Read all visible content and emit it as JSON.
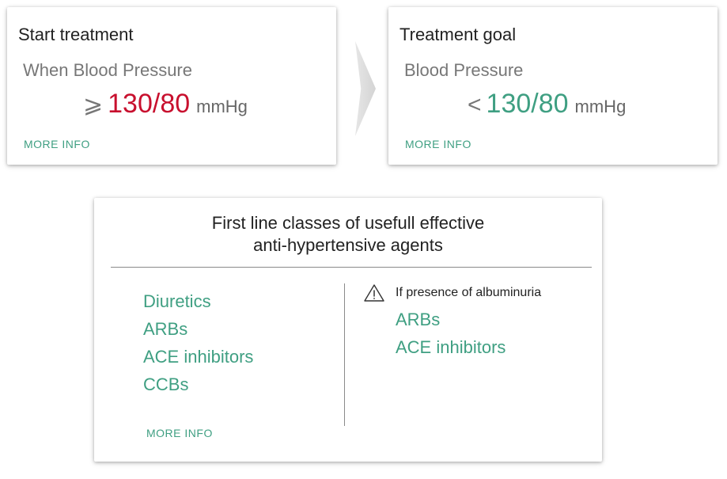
{
  "start_card": {
    "title": "Start treatment",
    "subtitle": "When Blood Pressure",
    "symbol": "⩾",
    "value": "130/80",
    "unit": "mmHg",
    "more_info": "MORE INFO"
  },
  "goal_card": {
    "title": "Treatment goal",
    "subtitle": "Blood Pressure",
    "symbol": "<",
    "value": "130/80",
    "unit": "mmHg",
    "more_info": "MORE INFO"
  },
  "classes_card": {
    "title_line1": "First line classes of usefull effective",
    "title_line2": "anti-hypertensive agents",
    "agents": [
      "Diuretics",
      "ARBs",
      "ACE inhibitors",
      "CCBs"
    ],
    "albuminuria": {
      "label": "If presence of albuminuria",
      "agents": [
        "ARBs",
        "ACE inhibitors"
      ]
    },
    "more_info": "MORE INFO"
  },
  "colors": {
    "accent_green": "#3f9f82",
    "alert_red": "#c8102e"
  },
  "icons": {
    "arrow": "chevron-right-icon",
    "warning": "warning-triangle-icon"
  }
}
